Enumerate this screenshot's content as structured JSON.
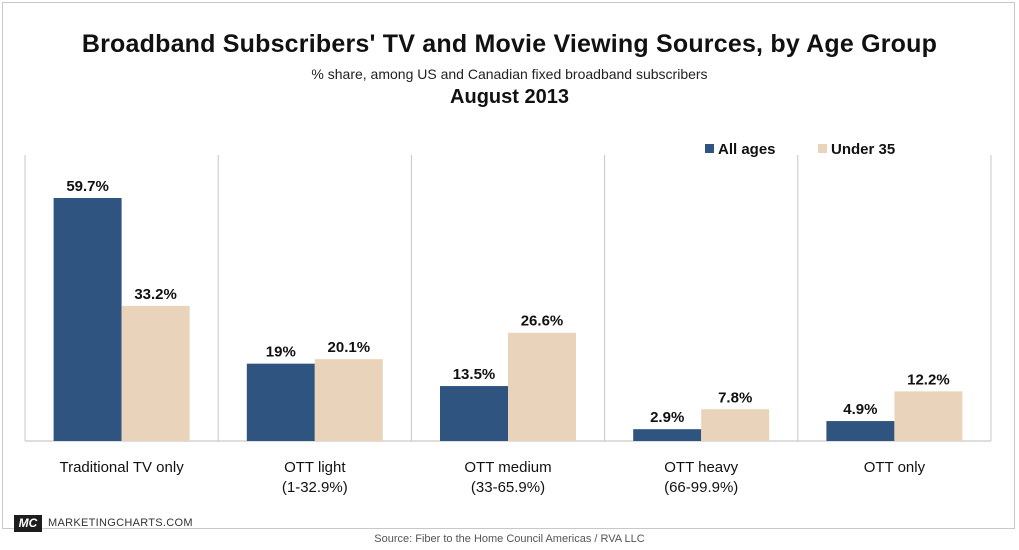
{
  "chart_data": {
    "type": "bar",
    "title": "Broadband Subscribers' TV and Movie Viewing Sources, by Age Group",
    "subtitle": "% share, among US and Canadian fixed broadband subscribers",
    "date": "August 2013",
    "categories": [
      "Traditional TV only",
      "OTT light\n(1-32.9%)",
      "OTT medium\n(33-65.9%)",
      "OTT heavy\n(66-99.9%)",
      "OTT only"
    ],
    "series": [
      {
        "name": "All ages",
        "color": "#2f5480",
        "values": [
          59.7,
          19,
          13.5,
          2.9,
          4.9
        ],
        "labels": [
          "59.7%",
          "19%",
          "13.5%",
          "2.9%",
          "4.9%"
        ]
      },
      {
        "name": "Under 35",
        "color": "#ead3bb",
        "values": [
          33.2,
          20.1,
          26.6,
          7.8,
          12.2
        ],
        "labels": [
          "33.2%",
          "20.1%",
          "26.6%",
          "7.8%",
          "12.2%"
        ]
      }
    ],
    "ylim": [
      0,
      62
    ],
    "legend_position": "top-right",
    "grid": false
  },
  "branding": {
    "logo": "MC",
    "site": "MARKETINGCHARTS.COM"
  },
  "source": "Source: Fiber to the Home Council Americas / RVA LLC"
}
